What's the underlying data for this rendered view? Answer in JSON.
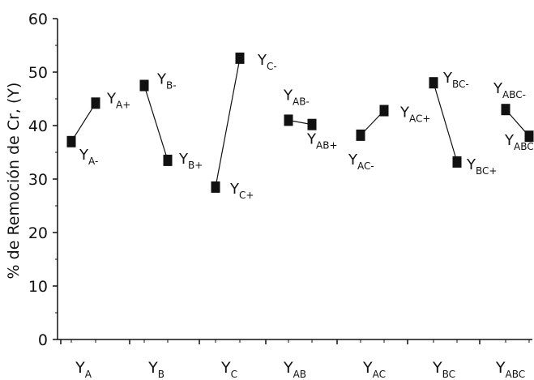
{
  "chart_data": {
    "type": "line",
    "ylabel": "% de Remoción de Cr, (Y)",
    "ylim": [
      0,
      60
    ],
    "yticks": [
      0,
      10,
      20,
      30,
      40,
      50,
      60
    ],
    "grid": false,
    "categories": [
      {
        "base": "Y",
        "sub": "A"
      },
      {
        "base": "Y",
        "sub": "B"
      },
      {
        "base": "Y",
        "sub": "C"
      },
      {
        "base": "Y",
        "sub": "AB"
      },
      {
        "base": "Y",
        "sub": "AC"
      },
      {
        "base": "Y",
        "sub": "BC"
      },
      {
        "base": "Y",
        "sub": "ABC"
      }
    ],
    "pairs": [
      {
        "low": {
          "label": "Y",
          "sub": "A-",
          "value": 37.0
        },
        "high": {
          "label": "Y",
          "sub": "A+",
          "value": 44.2
        }
      },
      {
        "low": {
          "label": "Y",
          "sub": "B-",
          "value": 47.5
        },
        "high": {
          "label": "Y",
          "sub": "B+",
          "value": 33.5
        }
      },
      {
        "low": {
          "label": "Y",
          "sub": "C+",
          "value": 28.5
        },
        "high": {
          "label": "Y",
          "sub": "C-",
          "value": 52.6
        }
      },
      {
        "low": {
          "label": "Y",
          "sub": "AB-",
          "value": 41.0
        },
        "high": {
          "label": "Y",
          "sub": "AB+",
          "value": 40.2
        }
      },
      {
        "low": {
          "label": "Y",
          "sub": "AC-",
          "value": 38.2
        },
        "high": {
          "label": "Y",
          "sub": "AC+",
          "value": 42.8
        }
      },
      {
        "low": {
          "label": "Y",
          "sub": "BC-",
          "value": 48.0
        },
        "high": {
          "label": "Y",
          "sub": "BC+",
          "value": 33.2
        }
      },
      {
        "low": {
          "label": "Y",
          "sub": "ABC-",
          "value": 43.0
        },
        "high": {
          "label": "Y",
          "sub": "ABC+",
          "value": 38.0
        }
      }
    ]
  }
}
